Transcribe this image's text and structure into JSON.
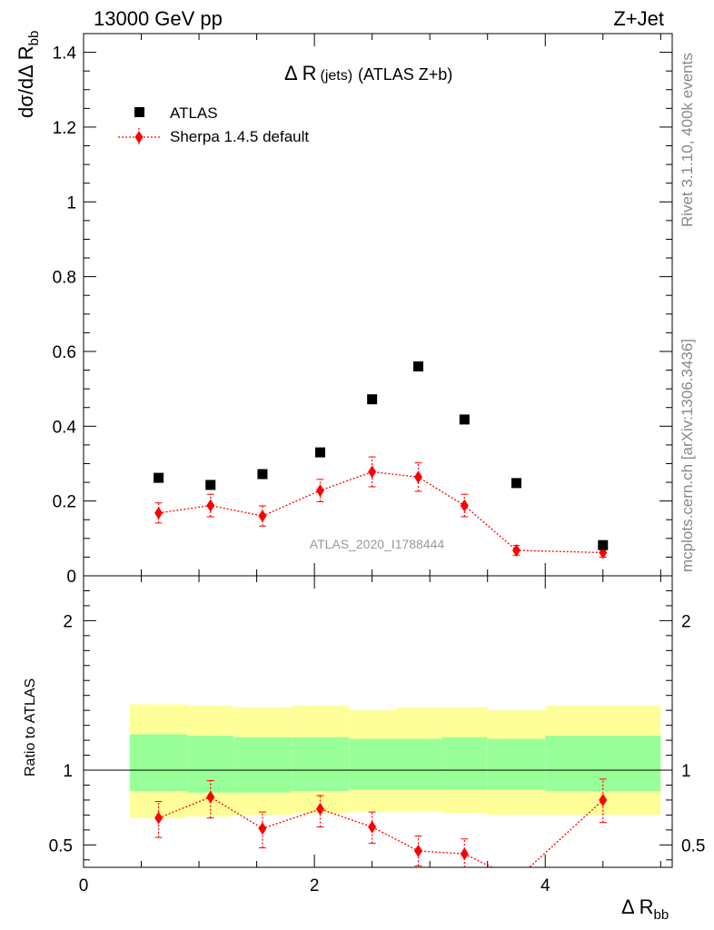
{
  "header": {
    "left": "13000 GeV pp",
    "right": "Z+Jet"
  },
  "side": {
    "rivet": "Rivet 3.1.10,  400k events",
    "mcplots": "mcplots.cern.ch [arXiv:1306.3436]"
  },
  "colors": {
    "data": "#000000",
    "mc": "#ff0000",
    "band_inner": "#99ff99",
    "band_outer": "#ffff99"
  },
  "chart_data": [
    {
      "type": "scatter",
      "panel": "main",
      "title_main": "Δ R",
      "title_sub": "(jets)",
      "title_tail": "(ATLAS Z+b)",
      "ylabel_main": "dσ/dΔ R",
      "ylabel_sub": "bb",
      "watermark": "ATLAS_2020_I1788444",
      "xlim": [
        0,
        5.1
      ],
      "ylim": [
        0,
        1.45
      ],
      "yticks": [
        0,
        0.2,
        0.4,
        0.6,
        0.8,
        1,
        1.2,
        1.4
      ],
      "ytick_labels": [
        "0",
        "0.2",
        "0.4",
        "0.6",
        "0.8",
        "1",
        "1.2",
        "1.4"
      ],
      "legend_position": "top-left",
      "series": [
        {
          "name": "ATLAS",
          "style": "square-markers",
          "x": [
            0.65,
            1.1,
            1.55,
            2.05,
            2.5,
            2.9,
            3.3,
            3.75,
            4.5
          ],
          "y": [
            0.262,
            0.243,
            0.272,
            0.33,
            0.472,
            0.56,
            0.418,
            0.248,
            0.082
          ]
        },
        {
          "name": "Sherpa 1.4.5 default",
          "style": "red-diamonds-dotted",
          "x": [
            0.65,
            1.1,
            1.55,
            2.05,
            2.5,
            2.9,
            3.3,
            3.75,
            4.5
          ],
          "y": [
            0.168,
            0.188,
            0.16,
            0.228,
            0.278,
            0.264,
            0.188,
            0.068,
            0.062
          ],
          "yerr": [
            0.027,
            0.03,
            0.027,
            0.03,
            0.04,
            0.038,
            0.03,
            0.013,
            0.012
          ]
        }
      ]
    },
    {
      "type": "line",
      "panel": "ratio",
      "ylabel": "Ratio to ATLAS",
      "xlabel_main": "Δ R",
      "xlabel_sub": "bb",
      "xlim": [
        0,
        5.1
      ],
      "ylim": [
        0.35,
        2.3
      ],
      "xticks": [
        0,
        2,
        4
      ],
      "xtick_labels": [
        "0",
        "2",
        "4"
      ],
      "yticks": [
        0.5,
        1,
        2
      ],
      "ytick_labels": [
        "0.5",
        "1",
        "2"
      ],
      "bands": {
        "edges": [
          0.4,
          0.9,
          1.3,
          1.8,
          2.3,
          2.7,
          3.1,
          3.5,
          4.0,
          5.0
        ],
        "inner_hi": [
          1.24,
          1.23,
          1.22,
          1.22,
          1.21,
          1.21,
          1.22,
          1.21,
          1.23
        ],
        "inner_lo": [
          0.86,
          0.85,
          0.85,
          0.86,
          0.87,
          0.87,
          0.87,
          0.87,
          0.86
        ],
        "outer_hi": [
          1.44,
          1.43,
          1.42,
          1.43,
          1.4,
          1.42,
          1.42,
          1.4,
          1.43
        ],
        "outer_lo": [
          0.68,
          0.69,
          0.7,
          0.71,
          0.72,
          0.72,
          0.71,
          0.7,
          0.7
        ]
      },
      "series": [
        {
          "name": "Sherpa 1.4.5 default",
          "x": [
            0.65,
            1.1,
            1.55,
            2.05,
            2.5,
            2.9,
            3.3,
            3.75,
            4.5
          ],
          "y": [
            0.68,
            0.82,
            0.61,
            0.74,
            0.62,
            0.46,
            0.44,
            0.27,
            0.8
          ],
          "ylow": [
            0.55,
            0.68,
            0.48,
            0.62,
            0.51,
            0.36,
            0.35,
            0.22,
            0.65
          ],
          "yhigh": [
            0.79,
            0.93,
            0.72,
            0.83,
            0.72,
            0.56,
            0.54,
            0.32,
            0.94
          ]
        }
      ]
    }
  ]
}
